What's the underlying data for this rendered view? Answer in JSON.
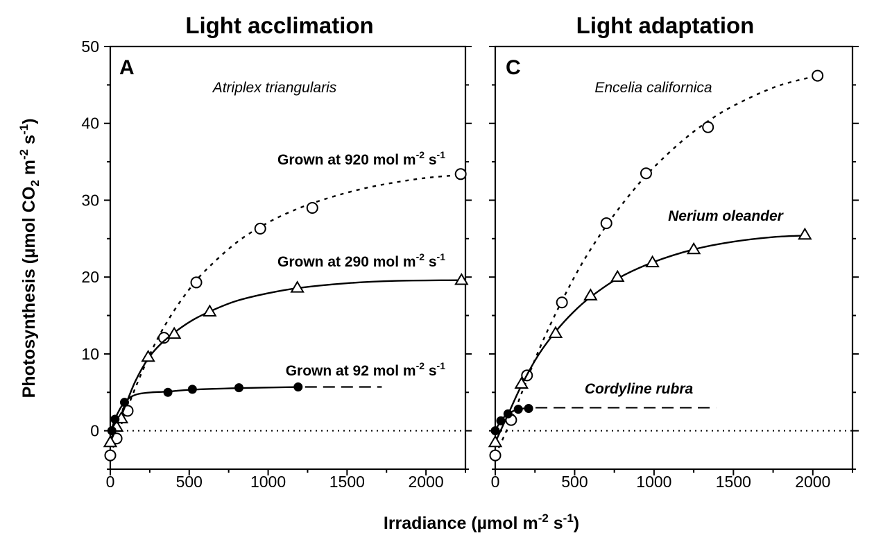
{
  "chart_data": [
    {
      "panel": "A",
      "type": "line",
      "title": "Light acclimation",
      "species": "Atriplex triangularis",
      "xlim": [
        0,
        2250
      ],
      "ylim": [
        -5,
        50
      ],
      "xticks": [
        0,
        500,
        1000,
        1500,
        2000
      ],
      "yticks": [
        0,
        10,
        20,
        30,
        40,
        50
      ],
      "zero_line": "dotted",
      "series": [
        {
          "name": "Grown at 920 mol m-2 s-1",
          "label_main": "Grown at 920 mol m",
          "label_sup1": "-2",
          "label_mid": " s",
          "label_sup2": "-1",
          "marker": "open-circle",
          "line": "dotted",
          "points": [
            [
              0,
              -3.2
            ],
            [
              40,
              -1.0
            ],
            [
              110,
              2.6
            ],
            [
              340,
              12.1
            ],
            [
              545,
              19.3
            ],
            [
              950,
              26.3
            ],
            [
              1280,
              29.0
            ],
            [
              2220,
              33.4
            ]
          ],
          "curve": [
            [
              0,
              -3.2
            ],
            [
              100,
              2.5
            ],
            [
              200,
              7.6
            ],
            [
              300,
              12.0
            ],
            [
              400,
              15.5
            ],
            [
              500,
              18.4
            ],
            [
              600,
              20.8
            ],
            [
              800,
              24.5
            ],
            [
              1000,
              27.1
            ],
            [
              1200,
              29.0
            ],
            [
              1400,
              30.4
            ],
            [
              1600,
              31.5
            ],
            [
              1800,
              32.3
            ],
            [
              2000,
              32.9
            ],
            [
              2220,
              33.3
            ]
          ]
        },
        {
          "name": "Grown at 290 mol m-2 s-1",
          "label_main": "Grown at 290 mol m",
          "label_sup1": "-2",
          "label_mid": " s",
          "label_sup2": "-1",
          "marker": "open-triangle",
          "line": "solid",
          "points": [
            [
              0,
              -1.5
            ],
            [
              40,
              0.5
            ],
            [
              70,
              1.6
            ],
            [
              240,
              9.6
            ],
            [
              405,
              12.6
            ],
            [
              630,
              15.5
            ],
            [
              1185,
              18.6
            ],
            [
              2225,
              19.6
            ]
          ],
          "curve": [
            [
              0,
              -1.5
            ],
            [
              50,
              0.9
            ],
            [
              100,
              3.5
            ],
            [
              160,
              6.5
            ],
            [
              240,
              9.4
            ],
            [
              320,
              11.3
            ],
            [
              420,
              13.0
            ],
            [
              530,
              14.5
            ],
            [
              650,
              15.7
            ],
            [
              800,
              16.9
            ],
            [
              1000,
              17.9
            ],
            [
              1200,
              18.6
            ],
            [
              1500,
              19.2
            ],
            [
              1800,
              19.5
            ],
            [
              2230,
              19.6
            ]
          ]
        },
        {
          "name": "Grown at 92 mol m-2 s-1",
          "label_main": "Grown at 92 mol m",
          "label_sup1": "-2",
          "label_mid": " s",
          "label_sup2": "-1",
          "marker": "filled-circle",
          "line": "solid-then-dashed",
          "points": [
            [
              10,
              0.0
            ],
            [
              30,
              1.5
            ],
            [
              90,
              3.7
            ],
            [
              365,
              5.0
            ],
            [
              520,
              5.4
            ],
            [
              815,
              5.6
            ],
            [
              1190,
              5.7
            ]
          ],
          "curve": [
            [
              0,
              -0.3
            ],
            [
              30,
              1.5
            ],
            [
              60,
              2.8
            ],
            [
              90,
              3.7
            ],
            [
              130,
              4.4
            ],
            [
              180,
              4.8
            ],
            [
              260,
              5.0
            ],
            [
              365,
              5.1
            ],
            [
              520,
              5.35
            ],
            [
              815,
              5.55
            ],
            [
              1190,
              5.7
            ]
          ],
          "extension": [
            [
              1190,
              5.7
            ],
            [
              1720,
              5.7
            ]
          ]
        }
      ]
    },
    {
      "panel": "C",
      "type": "line",
      "title": "Light adaptation",
      "xlim": [
        0,
        2250
      ],
      "ylim": [
        -5,
        50
      ],
      "xticks": [
        0,
        500,
        1000,
        1500,
        2000
      ],
      "yticks": [
        0,
        10,
        20,
        30,
        40,
        50
      ],
      "zero_line": "dotted",
      "series": [
        {
          "name": "Encelia californica",
          "marker": "open-circle",
          "line": "dotted",
          "points": [
            [
              0,
              -3.2
            ],
            [
              100,
              1.4
            ],
            [
              200,
              7.2
            ],
            [
              420,
              16.7
            ],
            [
              700,
              27.0
            ],
            [
              950,
              33.5
            ],
            [
              1340,
              39.5
            ],
            [
              2030,
              46.2
            ]
          ],
          "curve": [
            [
              0,
              -3.2
            ],
            [
              100,
              1.4
            ],
            [
              200,
              6.7
            ],
            [
              300,
              11.7
            ],
            [
              420,
              16.9
            ],
            [
              550,
              21.9
            ],
            [
              700,
              26.7
            ],
            [
              850,
              30.8
            ],
            [
              1000,
              34.3
            ],
            [
              1200,
              38.1
            ],
            [
              1400,
              41.1
            ],
            [
              1600,
              43.3
            ],
            [
              1800,
              45.0
            ],
            [
              2030,
              46.2
            ]
          ]
        },
        {
          "name": "Nerium oleander",
          "marker": "open-triangle",
          "line": "solid",
          "points": [
            [
              0,
              -1.5
            ],
            [
              165,
              6.1
            ],
            [
              380,
              12.7
            ],
            [
              600,
              17.6
            ],
            [
              770,
              20.0
            ],
            [
              990,
              21.9
            ],
            [
              1250,
              23.6
            ],
            [
              1950,
              25.5
            ]
          ],
          "curve": [
            [
              0,
              -1.5
            ],
            [
              80,
              2.1
            ],
            [
              165,
              5.9
            ],
            [
              270,
              9.8
            ],
            [
              380,
              12.9
            ],
            [
              490,
              15.4
            ],
            [
              600,
              17.4
            ],
            [
              770,
              19.8
            ],
            [
              990,
              21.9
            ],
            [
              1250,
              23.6
            ],
            [
              1500,
              24.6
            ],
            [
              1750,
              25.2
            ],
            [
              1950,
              25.4
            ]
          ]
        },
        {
          "name": "Cordyline rubra",
          "marker": "filled-circle",
          "line": "solid-then-dashed",
          "points": [
            [
              0,
              0.0
            ],
            [
              35,
              1.3
            ],
            [
              80,
              2.2
            ],
            [
              145,
              2.8
            ],
            [
              210,
              2.9
            ]
          ],
          "curve": [
            [
              0,
              0.0
            ],
            [
              35,
              1.3
            ],
            [
              80,
              2.2
            ],
            [
              145,
              2.8
            ],
            [
              210,
              2.95
            ]
          ],
          "extension": [
            [
              210,
              3.0
            ],
            [
              1390,
              3.0
            ]
          ]
        }
      ]
    }
  ],
  "axes": {
    "ylabel_main": "Photosynthesis (µmol CO",
    "ylabel_sub": "2",
    "ylabel_mid": " m",
    "ylabel_sup1": "-2",
    "ylabel_mid2": " s",
    "ylabel_sup2": "-1",
    "ylabel_end": ")",
    "xlabel_main": "Irradiance (µmol m",
    "xlabel_sup1": "-2",
    "xlabel_mid": " s",
    "xlabel_sup2": "-1",
    "xlabel_end": ")"
  }
}
